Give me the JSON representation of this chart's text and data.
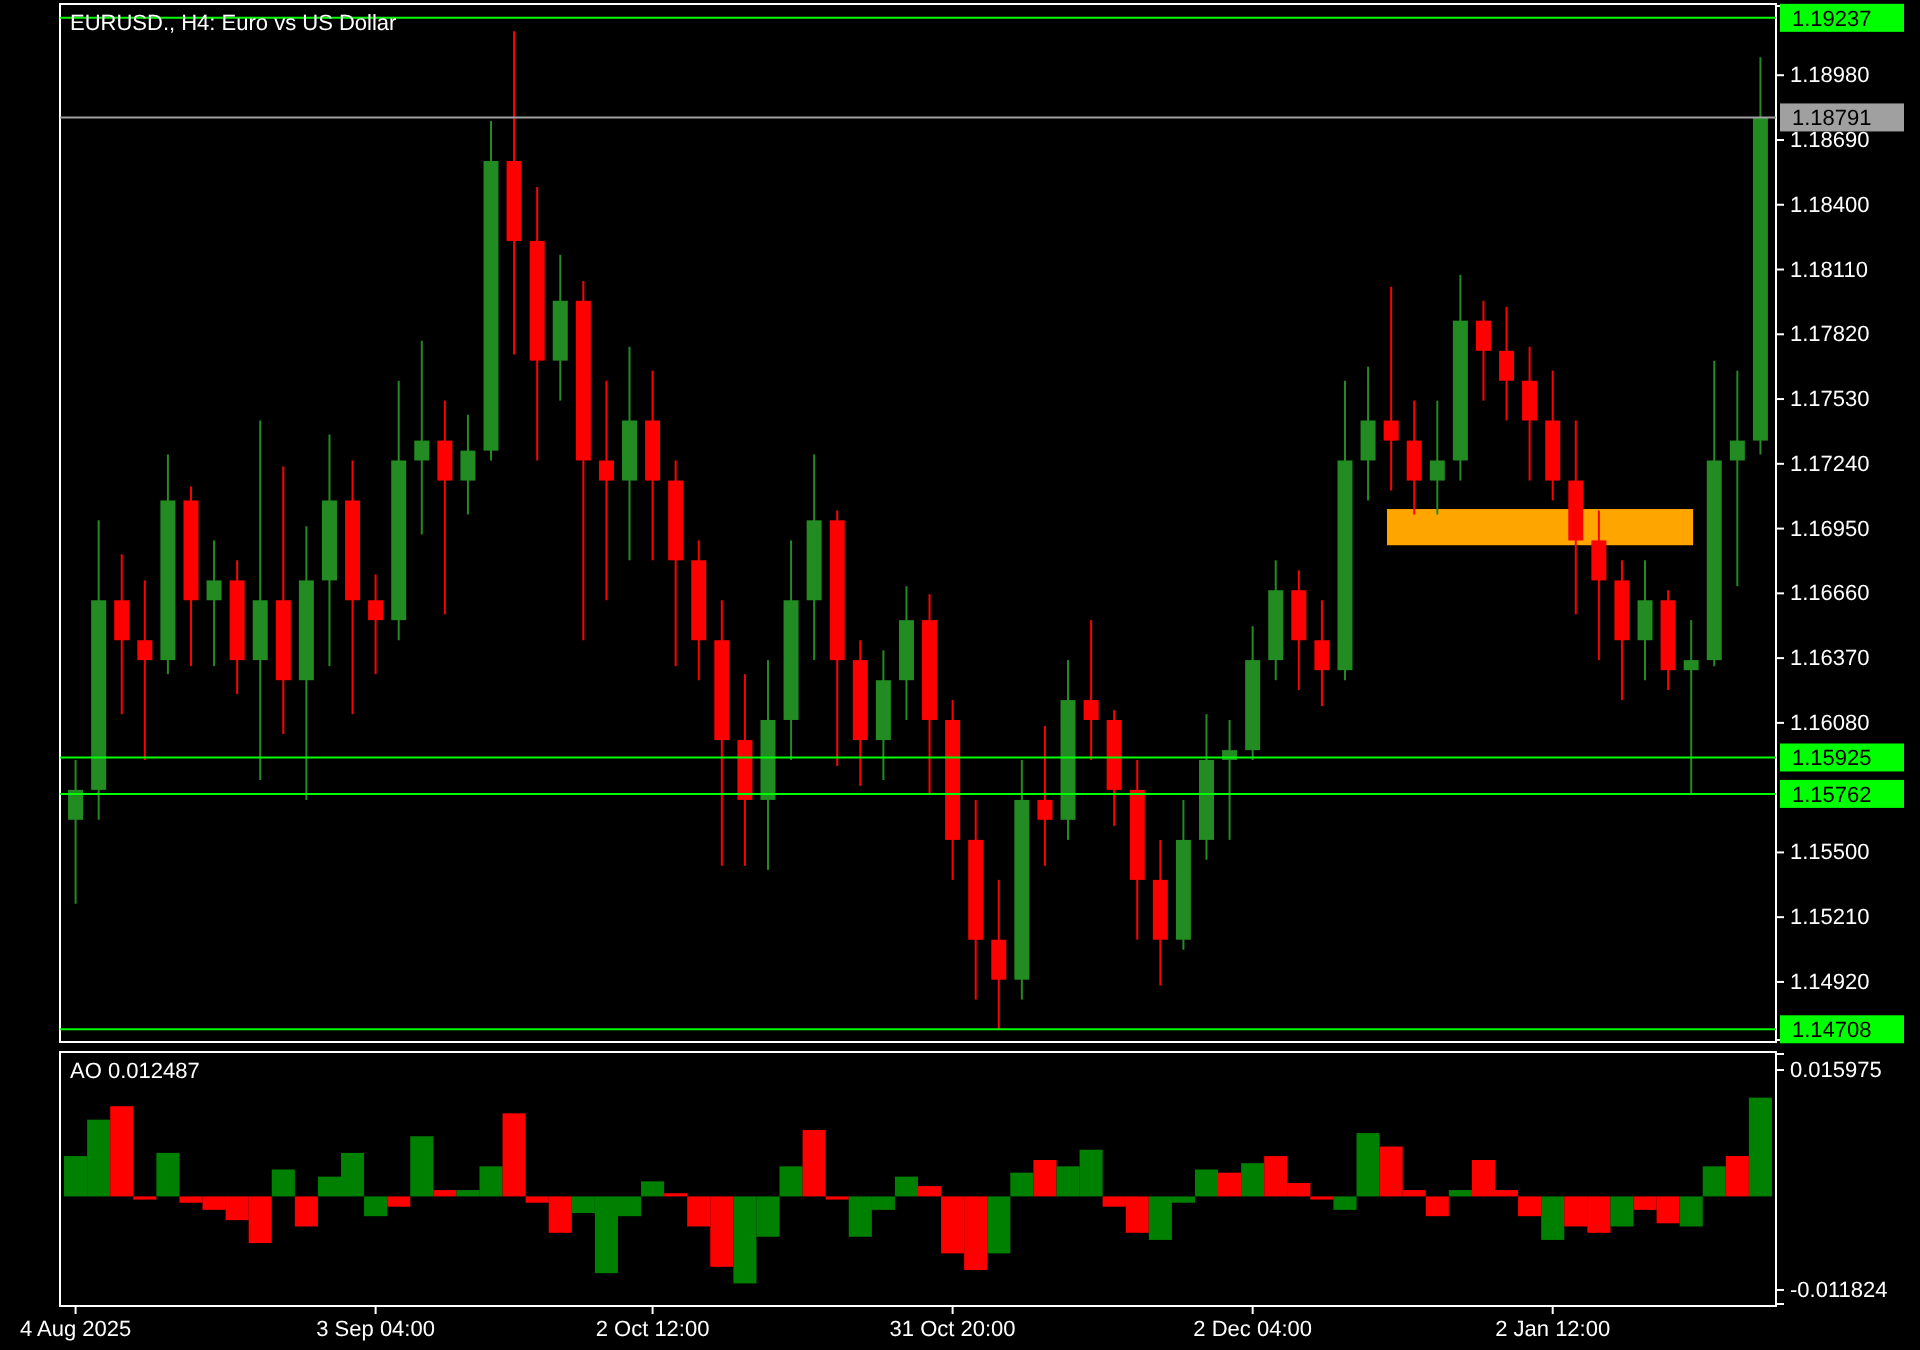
{
  "chart_data": [
    {
      "type": "candlestick",
      "title": "EURUSD., H4:  Euro vs US Dollar",
      "categories": [
        null,
        null,
        null,
        null,
        null,
        null,
        null,
        null,
        null,
        null,
        null,
        null,
        null,
        null,
        null,
        null,
        null,
        null,
        null,
        null,
        null,
        null,
        null,
        null,
        null,
        null,
        null,
        null,
        null,
        null,
        null,
        null,
        null,
        null,
        null,
        null,
        null,
        null,
        null,
        null,
        null,
        null,
        null,
        null,
        null,
        null,
        null,
        null,
        null,
        null,
        null,
        null,
        null,
        null,
        null,
        null,
        null,
        null,
        null,
        null,
        null,
        null,
        null,
        null,
        null,
        null,
        null,
        null,
        null,
        null,
        null,
        null,
        null,
        null
      ],
      "ohlc": [
        [
          1.15646,
          1.15914,
          1.1527,
          1.1578
        ],
        [
          1.1578,
          1.16987,
          1.15646,
          1.16629
        ],
        [
          1.16629,
          1.16835,
          1.16119,
          1.1645
        ],
        [
          1.1645,
          1.16718,
          1.15914,
          1.16361
        ],
        [
          1.16361,
          1.17282,
          1.16298,
          1.17076
        ],
        [
          1.17076,
          1.17139,
          1.16334,
          1.16629
        ],
        [
          1.16629,
          1.16897,
          1.16334,
          1.16718
        ],
        [
          1.16718,
          1.16808,
          1.16209,
          1.16361
        ],
        [
          1.16361,
          1.17434,
          1.15824,
          1.16629
        ],
        [
          1.16629,
          1.17228,
          1.1603,
          1.16271
        ],
        [
          1.16271,
          1.1696,
          1.15735,
          1.16718
        ],
        [
          1.16718,
          1.17371,
          1.16334,
          1.17076
        ],
        [
          1.17076,
          1.17255,
          1.16119,
          1.16629
        ],
        [
          1.16629,
          1.16745,
          1.16298,
          1.1654
        ],
        [
          1.1654,
          1.17612,
          1.1645,
          1.17255
        ],
        [
          1.17255,
          1.17791,
          1.16924,
          1.17344
        ],
        [
          1.17344,
          1.17523,
          1.16566,
          1.17165
        ],
        [
          1.17165,
          1.1746,
          1.17013,
          1.17299
        ],
        [
          1.17299,
          1.18775,
          1.17255,
          1.18596
        ],
        [
          1.18596,
          1.19177,
          1.17729,
          1.18238
        ],
        [
          1.18238,
          1.1848,
          1.17255,
          1.17702
        ],
        [
          1.17702,
          1.18176,
          1.17523,
          1.1797
        ],
        [
          1.1797,
          1.18059,
          1.1645,
          1.17255
        ],
        [
          1.17255,
          1.17612,
          1.16629,
          1.17165
        ],
        [
          1.17165,
          1.17764,
          1.16808,
          1.17434
        ],
        [
          1.17434,
          1.17657,
          1.16808,
          1.17165
        ],
        [
          1.17165,
          1.17255,
          1.16334,
          1.16808
        ],
        [
          1.16808,
          1.16897,
          1.16271,
          1.1645
        ],
        [
          1.1645,
          1.16629,
          1.1544,
          1.16003
        ],
        [
          1.16003,
          1.16298,
          1.1544,
          1.15735
        ],
        [
          1.15735,
          1.16361,
          1.15422,
          1.16093
        ],
        [
          1.16093,
          1.16897,
          1.15914,
          1.16629
        ],
        [
          1.16629,
          1.17282,
          1.16361,
          1.16987
        ],
        [
          1.16987,
          1.17031,
          1.15887,
          1.16361
        ],
        [
          1.16361,
          1.1645,
          1.15798,
          1.16003
        ],
        [
          1.16003,
          1.16405,
          1.15824,
          1.16271
        ],
        [
          1.16271,
          1.16692,
          1.16093,
          1.1654
        ],
        [
          1.1654,
          1.16656,
          1.15762,
          1.16093
        ],
        [
          1.16093,
          1.16182,
          1.15377,
          1.15556
        ],
        [
          1.15556,
          1.15735,
          1.14841,
          1.15109
        ],
        [
          1.15109,
          1.15377,
          1.14708,
          1.1493
        ],
        [
          1.1493,
          1.15914,
          1.14841,
          1.15735
        ],
        [
          1.15735,
          1.16066,
          1.1544,
          1.15646
        ],
        [
          1.15646,
          1.16361,
          1.15556,
          1.16182
        ],
        [
          1.16182,
          1.1654,
          1.15914,
          1.16093
        ],
        [
          1.16093,
          1.16137,
          1.15619,
          1.1578
        ],
        [
          1.1578,
          1.15914,
          1.15109,
          1.15377
        ],
        [
          1.15377,
          1.15556,
          1.14904,
          1.15109
        ],
        [
          1.15109,
          1.15735,
          1.15064,
          1.15556
        ],
        [
          1.15556,
          1.16119,
          1.15467,
          1.15914
        ],
        [
          1.15914,
          1.16093,
          1.15556,
          1.15958
        ],
        [
          1.15958,
          1.16513,
          1.15914,
          1.16361
        ],
        [
          1.16361,
          1.16808,
          1.16271,
          1.16674
        ],
        [
          1.16674,
          1.16763,
          1.16227,
          1.1645
        ],
        [
          1.1645,
          1.16629,
          1.16155,
          1.16316
        ],
        [
          1.16316,
          1.17612,
          1.16271,
          1.17255
        ],
        [
          1.17255,
          1.17675,
          1.17076,
          1.17434
        ],
        [
          1.17434,
          1.18033,
          1.17121,
          1.17344
        ],
        [
          1.17344,
          1.17523,
          1.17013,
          1.17165
        ],
        [
          1.17165,
          1.17523,
          1.17013,
          1.17255
        ],
        [
          1.17255,
          1.18086,
          1.17165,
          1.17881
        ],
        [
          1.17881,
          1.1797,
          1.17523,
          1.17746
        ],
        [
          1.17746,
          1.17943,
          1.17434,
          1.17612
        ],
        [
          1.17612,
          1.17764,
          1.17165,
          1.17434
        ],
        [
          1.17434,
          1.17657,
          1.17076,
          1.17165
        ],
        [
          1.17165,
          1.17434,
          1.16566,
          1.16897
        ],
        [
          1.16897,
          1.17031,
          1.16361,
          1.16718
        ],
        [
          1.16718,
          1.16808,
          1.16182,
          1.1645
        ],
        [
          1.1645,
          1.16808,
          1.16271,
          1.16629
        ],
        [
          1.16629,
          1.16674,
          1.16227,
          1.16316
        ],
        [
          1.16316,
          1.1654,
          1.15762,
          1.16361
        ],
        [
          1.16361,
          1.17702,
          1.16334,
          1.17255
        ],
        [
          1.17255,
          1.17657,
          1.16692,
          1.17344
        ],
        [
          1.17344,
          1.19061,
          1.17282,
          1.18791
        ]
      ],
      "ylim": [
        1.1466,
        1.1929
      ],
      "yticks": [
        {
          "value": 1.1492,
          "label": "1.14920"
        },
        {
          "value": 1.1521,
          "label": "1.15210"
        },
        {
          "value": 1.155,
          "label": "1.15500"
        },
        {
          "value": 1.1608,
          "label": "1.16080"
        },
        {
          "value": 1.1637,
          "label": "1.16370"
        },
        {
          "value": 1.1666,
          "label": "1.16660"
        },
        {
          "value": 1.1695,
          "label": "1.16950"
        },
        {
          "value": 1.1724,
          "label": "1.17240"
        },
        {
          "value": 1.1753,
          "label": "1.17530"
        },
        {
          "value": 1.1782,
          "label": "1.17820"
        },
        {
          "value": 1.1811,
          "label": "1.18110"
        },
        {
          "value": 1.184,
          "label": "1.18400"
        },
        {
          "value": 1.1869,
          "label": "1.18690"
        },
        {
          "value": 1.1898,
          "label": "1.18980"
        }
      ],
      "ref_lines": [
        {
          "axis": "y",
          "value": 1.19237,
          "label": "1.19237",
          "color": "#00ff00"
        },
        {
          "axis": "y",
          "value": 1.18791,
          "label": "1.18791",
          "color": "#a0a0a0"
        },
        {
          "axis": "y",
          "value": 1.15925,
          "label": "1.15925",
          "color": "#00ff00"
        },
        {
          "axis": "y",
          "value": 1.15762,
          "label": "1.15762",
          "color": "#00ff00"
        },
        {
          "axis": "y",
          "value": 1.14708,
          "label": "1.14708",
          "color": "#00ff00"
        }
      ],
      "grid": false
    },
    {
      "type": "bar",
      "title": "AO 0.012487",
      "categories": [
        "4 Aug 2025",
        null,
        null,
        null,
        null,
        null,
        null,
        null,
        null,
        null,
        null,
        null,
        null,
        "3 Sep 04:00",
        null,
        null,
        null,
        null,
        null,
        null,
        null,
        null,
        null,
        null,
        null,
        "2 Oct 12:00",
        null,
        null,
        null,
        null,
        null,
        null,
        null,
        null,
        null,
        null,
        null,
        null,
        "31 Oct 20:00",
        null,
        null,
        null,
        null,
        null,
        null,
        null,
        null,
        null,
        null,
        null,
        null,
        "2 Dec 04:00",
        null,
        null,
        null,
        null,
        null,
        null,
        null,
        null,
        null,
        null,
        null,
        null,
        "2 Jan 12:00",
        null,
        null,
        null,
        null,
        null,
        null,
        null,
        null,
        null
      ],
      "values": [
        0.0051,
        0.0097,
        0.0114,
        -0.0004,
        0.0055,
        -0.0008,
        -0.0017,
        -0.003,
        -0.0059,
        0.0034,
        -0.0038,
        0.0025,
        0.0055,
        -0.0025,
        -0.0013,
        0.0076,
        0.0008,
        0.0008,
        0.0038,
        0.0105,
        -0.0008,
        -0.0046,
        -0.0021,
        -0.0097,
        -0.0025,
        0.0019,
        0.0004,
        -0.0038,
        -0.0089,
        -0.011,
        -0.0051,
        0.0038,
        0.0084,
        -0.0004,
        -0.0051,
        -0.0017,
        0.0025,
        0.0013,
        -0.0072,
        -0.0093,
        -0.0072,
        0.003,
        0.0046,
        0.0038,
        0.0059,
        -0.0013,
        -0.0046,
        -0.0055,
        -0.0008,
        0.0034,
        0.003,
        0.0042,
        0.0051,
        0.0017,
        -0.0004,
        -0.0017,
        0.008,
        0.0063,
        0.0008,
        -0.0025,
        0.0008,
        0.0046,
        0.0008,
        -0.0025,
        -0.0055,
        -0.0038,
        -0.0046,
        -0.0038,
        -0.0017,
        -0.0034,
        -0.0038,
        0.0038,
        0.0051,
        0.012487
      ],
      "colors": [
        "#008000",
        "#008000",
        "#ff0000",
        "#ff0000",
        "#008000",
        "#ff0000",
        "#ff0000",
        "#ff0000",
        "#ff0000",
        "#008000",
        "#ff0000",
        "#008000",
        "#008000",
        "#008000",
        "#ff0000",
        "#008000",
        "#ff0000",
        "#008000",
        "#008000",
        "#ff0000",
        "#ff0000",
        "#ff0000",
        "#008000",
        "#008000",
        "#008000",
        "#008000",
        "#ff0000",
        "#ff0000",
        "#ff0000",
        "#008000",
        "#008000",
        "#008000",
        "#ff0000",
        "#ff0000",
        "#008000",
        "#008000",
        "#008000",
        "#ff0000",
        "#ff0000",
        "#ff0000",
        "#008000",
        "#008000",
        "#ff0000",
        "#008000",
        "#008000",
        "#ff0000",
        "#ff0000",
        "#008000",
        "#008000",
        "#008000",
        "#ff0000",
        "#008000",
        "#ff0000",
        "#ff0000",
        "#ff0000",
        "#008000",
        "#008000",
        "#ff0000",
        "#ff0000",
        "#ff0000",
        "#008000",
        "#ff0000",
        "#ff0000",
        "#ff0000",
        "#008000",
        "#ff0000",
        "#ff0000",
        "#008000",
        "#ff0000",
        "#ff0000",
        "#008000",
        "#008000",
        "#ff0000",
        "#008000"
      ],
      "ylim": [
        -0.0136,
        0.018
      ],
      "yticks": [
        0.015975,
        -0.011824
      ]
    }
  ]
}
